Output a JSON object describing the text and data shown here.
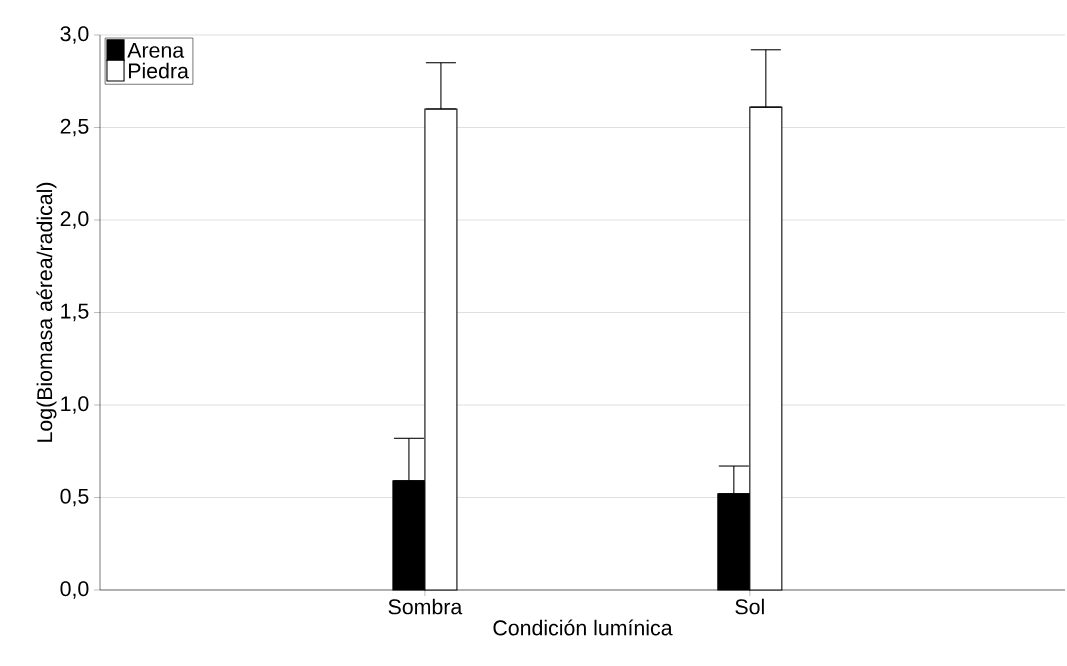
{
  "chart_data": {
    "type": "bar",
    "xlabel": "Condición lumínica",
    "ylabel": "Log(Biomasa aérea/radical)",
    "categories": [
      "Sombra",
      "Sol"
    ],
    "series": [
      {
        "name": "Arena",
        "color": "#000000",
        "values": [
          0.59,
          0.52
        ],
        "errors": [
          [
            0.59,
            0.82
          ],
          [
            0.52,
            0.67
          ]
        ]
      },
      {
        "name": "Piedra",
        "color": "#ffffff",
        "values": [
          2.6,
          2.61
        ],
        "errors": [
          [
            2.6,
            2.85
          ],
          [
            2.61,
            2.92
          ]
        ]
      }
    ],
    "ylim": [
      0,
      3
    ],
    "yticks": [
      {
        "value": 0,
        "label": "0,0"
      },
      {
        "value": 0.5,
        "label": "0,5"
      },
      {
        "value": 1,
        "label": "1,0"
      },
      {
        "value": 1.5,
        "label": "1,5"
      },
      {
        "value": 2,
        "label": "2,0"
      },
      {
        "value": 2.5,
        "label": "2,5"
      },
      {
        "value": 3,
        "label": "3,0"
      }
    ],
    "grid": "y",
    "legend": "top left"
  }
}
